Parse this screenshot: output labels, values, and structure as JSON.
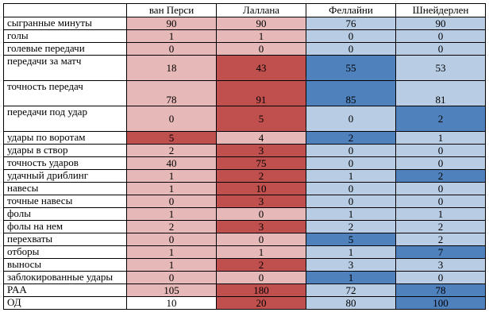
{
  "players": [
    "ван Перси",
    "Лаллана",
    "Феллайни",
    "Шнейдерлен"
  ],
  "rows": [
    {
      "label": "сыгранные минуты",
      "h": 16,
      "values": [
        "90",
        "90",
        "76",
        "90"
      ],
      "shades": [
        "cr1",
        "cr1",
        "cb1",
        "cb1"
      ]
    },
    {
      "label": "голы",
      "h": 16,
      "values": [
        "1",
        "1",
        "0",
        "0"
      ],
      "shades": [
        "cr1",
        "cr1",
        "cb1",
        "cb1"
      ]
    },
    {
      "label": "голевые передачи",
      "h": 16,
      "values": [
        "0",
        "0",
        "0",
        "0"
      ],
      "shades": [
        "cr1",
        "cr1",
        "cb1",
        "cb1"
      ]
    },
    {
      "label": "передачи за матч",
      "h": 32,
      "values": [
        "18",
        "43",
        "55",
        "53"
      ],
      "shades": [
        "cr1",
        "cr2",
        "cb2",
        "cb1"
      ]
    },
    {
      "label": "точность передач",
      "h": 32,
      "values": [
        "78",
        "91",
        "85",
        "81"
      ],
      "shades": [
        "cr1",
        "cr2",
        "cb2",
        "cb1"
      ]
    },
    {
      "label": "передачи под удар",
      "h": 32,
      "values": [
        "0",
        "5",
        "0",
        "2"
      ],
      "shades": [
        "cr1",
        "cr2",
        "cb1",
        "cb2"
      ]
    },
    {
      "label": "удары по воротам",
      "h": 16,
      "values": [
        "5",
        "4",
        "2",
        "1"
      ],
      "shades": [
        "cr2",
        "cr1",
        "cb2",
        "cb1"
      ]
    },
    {
      "label": "удары в створ",
      "h": 16,
      "values": [
        "2",
        "3",
        "0",
        "0"
      ],
      "shades": [
        "cr1",
        "cr2",
        "cb1",
        "cb1"
      ]
    },
    {
      "label": "точность ударов",
      "h": 16,
      "values": [
        "40",
        "75",
        "0",
        "0"
      ],
      "shades": [
        "cr1",
        "cr2",
        "cb1",
        "cb1"
      ]
    },
    {
      "label": "удачный дриблинг",
      "h": 16,
      "values": [
        "1",
        "2",
        "1",
        "2"
      ],
      "shades": [
        "cr1",
        "cr2",
        "cb1",
        "cb2"
      ]
    },
    {
      "label": "навесы",
      "h": 16,
      "values": [
        "1",
        "10",
        "0",
        "0"
      ],
      "shades": [
        "cr1",
        "cr2",
        "cb1",
        "cb1"
      ]
    },
    {
      "label": "точные навесы",
      "h": 16,
      "values": [
        "0",
        "3",
        "0",
        "0"
      ],
      "shades": [
        "cr1",
        "cr2",
        "cb1",
        "cb1"
      ]
    },
    {
      "label": "фолы",
      "h": 16,
      "values": [
        "1",
        "0",
        "1",
        "1"
      ],
      "shades": [
        "cr1",
        "cr1",
        "cb1",
        "cb1"
      ]
    },
    {
      "label": "фолы на нем",
      "h": 16,
      "values": [
        "2",
        "3",
        "2",
        "2"
      ],
      "shades": [
        "cr1",
        "cr2",
        "cb1",
        "cb1"
      ]
    },
    {
      "label": "перехваты",
      "h": 16,
      "values": [
        "0",
        "0",
        "5",
        "2"
      ],
      "shades": [
        "cr1",
        "cr1",
        "cb2",
        "cb1"
      ]
    },
    {
      "label": "отборы",
      "h": 16,
      "values": [
        "1",
        "1",
        "1",
        "7"
      ],
      "shades": [
        "cr1",
        "cr1",
        "cb1",
        "cb2"
      ]
    },
    {
      "label": "выносы",
      "h": 16,
      "values": [
        "1",
        "2",
        "3",
        "3"
      ],
      "shades": [
        "cr1",
        "cr2",
        "cb1",
        "cb1"
      ]
    },
    {
      "label": "заблокированные удары",
      "h": 16,
      "values": [
        "0",
        "0",
        "1",
        "0"
      ],
      "shades": [
        "cr1",
        "cr1",
        "cb2",
        "cb1"
      ]
    },
    {
      "label": "PAA",
      "h": 16,
      "values": [
        "105",
        "180",
        "72",
        "78"
      ],
      "shades": [
        "cr1",
        "cr2",
        "cb1",
        "cb2"
      ]
    },
    {
      "label": "ОД",
      "h": 16,
      "values": [
        "10",
        "20",
        "80",
        "100"
      ],
      "shades": [
        "cw",
        "cr2",
        "cb1",
        "cb2"
      ]
    }
  ]
}
